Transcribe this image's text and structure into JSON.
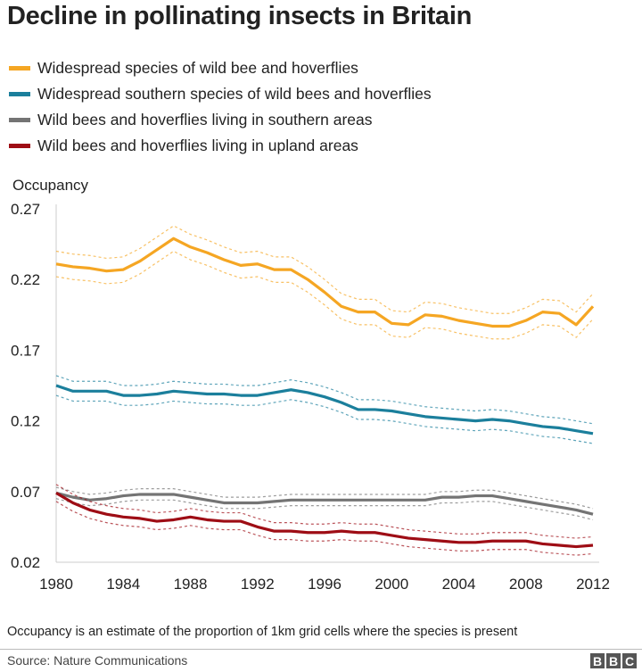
{
  "chart_data": {
    "type": "line",
    "title": "Decline in pollinating insects in Britain",
    "ylabel": "Occupancy",
    "xlabel": "",
    "ylim": [
      0.02,
      0.27
    ],
    "xlim": [
      1980,
      2012
    ],
    "yticks": [
      "0.27",
      "0.22",
      "0.17",
      "0.12",
      "0.07",
      "0.02"
    ],
    "ytick_values": [
      0.27,
      0.22,
      0.17,
      0.12,
      0.07,
      0.02
    ],
    "xticks": [
      "1980",
      "1984",
      "1988",
      "1992",
      "1996",
      "2000",
      "2004",
      "2008",
      "2012"
    ],
    "xtick_values": [
      1980,
      1984,
      1988,
      1992,
      1996,
      2000,
      2004,
      2008,
      2012
    ],
    "grid": false,
    "legend_position": "top-left",
    "x": [
      1980,
      1981,
      1982,
      1983,
      1984,
      1985,
      1986,
      1987,
      1988,
      1989,
      1990,
      1991,
      1992,
      1993,
      1994,
      1995,
      1996,
      1997,
      1998,
      1999,
      2000,
      2001,
      2002,
      2003,
      2004,
      2005,
      2006,
      2007,
      2008,
      2009,
      2010,
      2011,
      2012
    ],
    "series": [
      {
        "name": "Widespread species of wild bee and hoverflies",
        "color": "#f5a623",
        "ci": 0.009,
        "values": [
          0.231,
          0.229,
          0.228,
          0.226,
          0.227,
          0.233,
          0.241,
          0.249,
          0.243,
          0.239,
          0.234,
          0.23,
          0.231,
          0.227,
          0.227,
          0.22,
          0.211,
          0.201,
          0.197,
          0.197,
          0.189,
          0.188,
          0.195,
          0.194,
          0.191,
          0.189,
          0.187,
          0.187,
          0.191,
          0.197,
          0.196,
          0.188,
          0.201
        ]
      },
      {
        "name": "Widespread southern species of wild bees and hoverflies",
        "color": "#1b7f9c",
        "ci": 0.007,
        "values": [
          0.145,
          0.141,
          0.141,
          0.141,
          0.138,
          0.138,
          0.139,
          0.141,
          0.14,
          0.139,
          0.139,
          0.138,
          0.138,
          0.14,
          0.142,
          0.14,
          0.137,
          0.133,
          0.128,
          0.128,
          0.127,
          0.125,
          0.123,
          0.122,
          0.121,
          0.12,
          0.121,
          0.12,
          0.118,
          0.116,
          0.115,
          0.113,
          0.111
        ]
      },
      {
        "name": "Wild bees and hoverflies living in southern areas",
        "color": "#747474",
        "ci": 0.004,
        "values": [
          0.069,
          0.066,
          0.064,
          0.065,
          0.067,
          0.068,
          0.068,
          0.068,
          0.066,
          0.064,
          0.062,
          0.062,
          0.062,
          0.063,
          0.064,
          0.064,
          0.064,
          0.064,
          0.064,
          0.064,
          0.064,
          0.064,
          0.064,
          0.066,
          0.066,
          0.067,
          0.067,
          0.065,
          0.063,
          0.061,
          0.059,
          0.057,
          0.054
        ]
      },
      {
        "name": "Wild bees and hoverflies living in upland areas",
        "color": "#9e0d15",
        "ci": 0.006,
        "values": [
          0.069,
          0.062,
          0.057,
          0.054,
          0.052,
          0.051,
          0.049,
          0.05,
          0.052,
          0.05,
          0.049,
          0.049,
          0.045,
          0.042,
          0.042,
          0.041,
          0.041,
          0.042,
          0.041,
          0.041,
          0.039,
          0.037,
          0.036,
          0.035,
          0.034,
          0.034,
          0.035,
          0.035,
          0.035,
          0.033,
          0.032,
          0.031,
          0.032
        ]
      }
    ]
  },
  "footer": {
    "note": "Occupancy is an estimate of the proportion of 1km grid cells where the species is present",
    "source": "Source: Nature Communications",
    "logo": [
      "B",
      "B",
      "C"
    ]
  }
}
